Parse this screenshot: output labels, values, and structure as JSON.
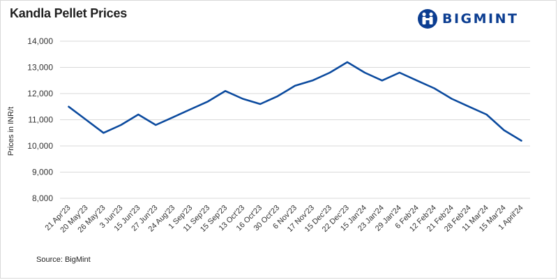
{
  "header": {
    "title": "Kandla Pellet Prices",
    "logo_text": "BIGMINT",
    "logo_color": "#0b3d91"
  },
  "footer": {
    "source": "Source: BigMint"
  },
  "chart_data": {
    "type": "line",
    "title": "Kandla Pellet Prices",
    "xlabel": "",
    "ylabel": "Prices in INR/t",
    "ylim": [
      8000,
      14000
    ],
    "yticks": [
      8000,
      9000,
      10000,
      11000,
      12000,
      13000,
      14000
    ],
    "ytick_labels": [
      "8,000",
      "9,000",
      "10,000",
      "11,000",
      "12,000",
      "13,000",
      "14,000"
    ],
    "grid": true,
    "legend": "none",
    "line_color": "#0b4a9e",
    "categories": [
      "21 Apr'23",
      "20 May'23",
      "26 May'23",
      "3 Jun'23",
      "15 Jun'23",
      "27 Jun'23",
      "24 Aug'23",
      "1 Sep'23",
      "11 Sep'23",
      "15 Sep'23",
      "13 Oct'23",
      "16 Oct'23",
      "30 Oct'23",
      "6 Nov'23",
      "17 Nov'23",
      "15 Dec'23",
      "22 Dec'23",
      "15 Jan'24",
      "23 Jan'24",
      "29 Jan'24",
      "6 Feb'24",
      "12 Feb'24",
      "21 Feb'24",
      "28 Feb'24",
      "11 Mar'24",
      "15 Mar'24",
      "1 April'24"
    ],
    "series": [
      {
        "values": [
          11500,
          11000,
          10500,
          10800,
          11200,
          10800,
          11100,
          11400,
          11700,
          12100,
          11800,
          11600,
          11900,
          12300,
          12500,
          12800,
          13200,
          12800,
          12500,
          12800,
          12500,
          12200,
          11800,
          11500,
          11200,
          10600,
          10200
        ]
      }
    ]
  }
}
